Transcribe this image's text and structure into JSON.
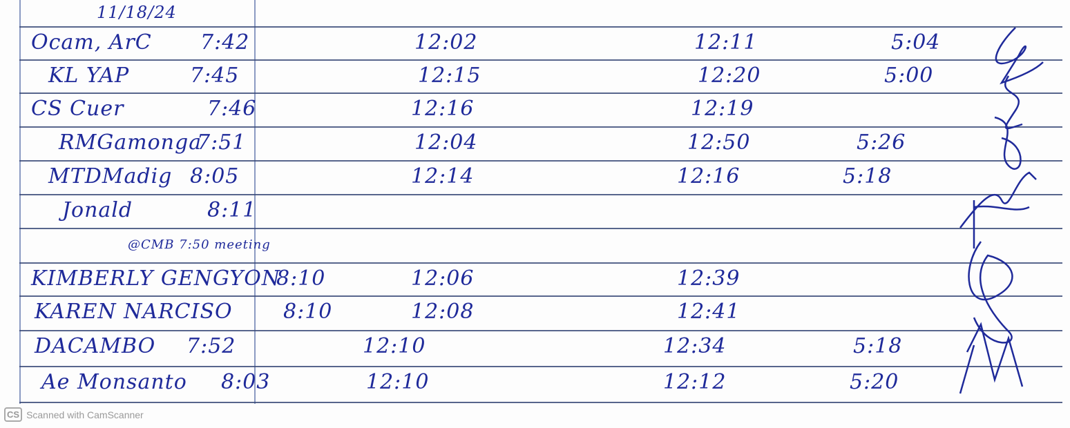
{
  "date": "11/18/24",
  "rows": [
    {
      "name": "Ocam, ArC",
      "time_in": "7:42",
      "lunch_out": "12:02",
      "lunch_in": "12:11",
      "time_out": "5:04"
    },
    {
      "name": "KL YAP",
      "time_in": "7:45",
      "lunch_out": "12:15",
      "lunch_in": "12:20",
      "time_out": "5:00"
    },
    {
      "name": "CS Cuer",
      "time_in": "7:46",
      "lunch_out": "12:16",
      "lunch_in": "12:19",
      "time_out": ""
    },
    {
      "name": "RMGamonga",
      "time_in": "7:51",
      "lunch_out": "12:04",
      "lunch_in": "12:50",
      "time_out": "5:26"
    },
    {
      "name": "MTDMadig",
      "time_in": "8:05",
      "lunch_out": "12:14",
      "lunch_in": "12:16",
      "time_out": "5:18"
    },
    {
      "name": "Jonald",
      "time_in": "8:11",
      "lunch_out": "",
      "lunch_in": "",
      "time_out": ""
    },
    {
      "name": "@CMB 7:50 meeting",
      "time_in": "",
      "lunch_out": "",
      "lunch_in": "",
      "time_out": ""
    },
    {
      "name": "KIMBERLY GENGYON",
      "time_in": "8:10",
      "lunch_out": "12:06",
      "lunch_in": "12:39",
      "time_out": ""
    },
    {
      "name": "KAREN NARCISO",
      "time_in": "8:10",
      "lunch_out": "12:08",
      "lunch_in": "12:41",
      "time_out": ""
    },
    {
      "name": "DACAMBO",
      "time_in": "7:52",
      "lunch_out": "12:10",
      "lunch_in": "12:34",
      "time_out": "5:18"
    },
    {
      "name": "Ae Monsanto",
      "time_in": "8:03",
      "lunch_out": "12:10",
      "lunch_in": "12:12",
      "time_out": "5:20"
    }
  ],
  "footer": {
    "logo": "CS",
    "text": "Scanned with CamScanner"
  },
  "colors": {
    "ink": "#1f2a9a",
    "rule": "#3a4a78"
  }
}
